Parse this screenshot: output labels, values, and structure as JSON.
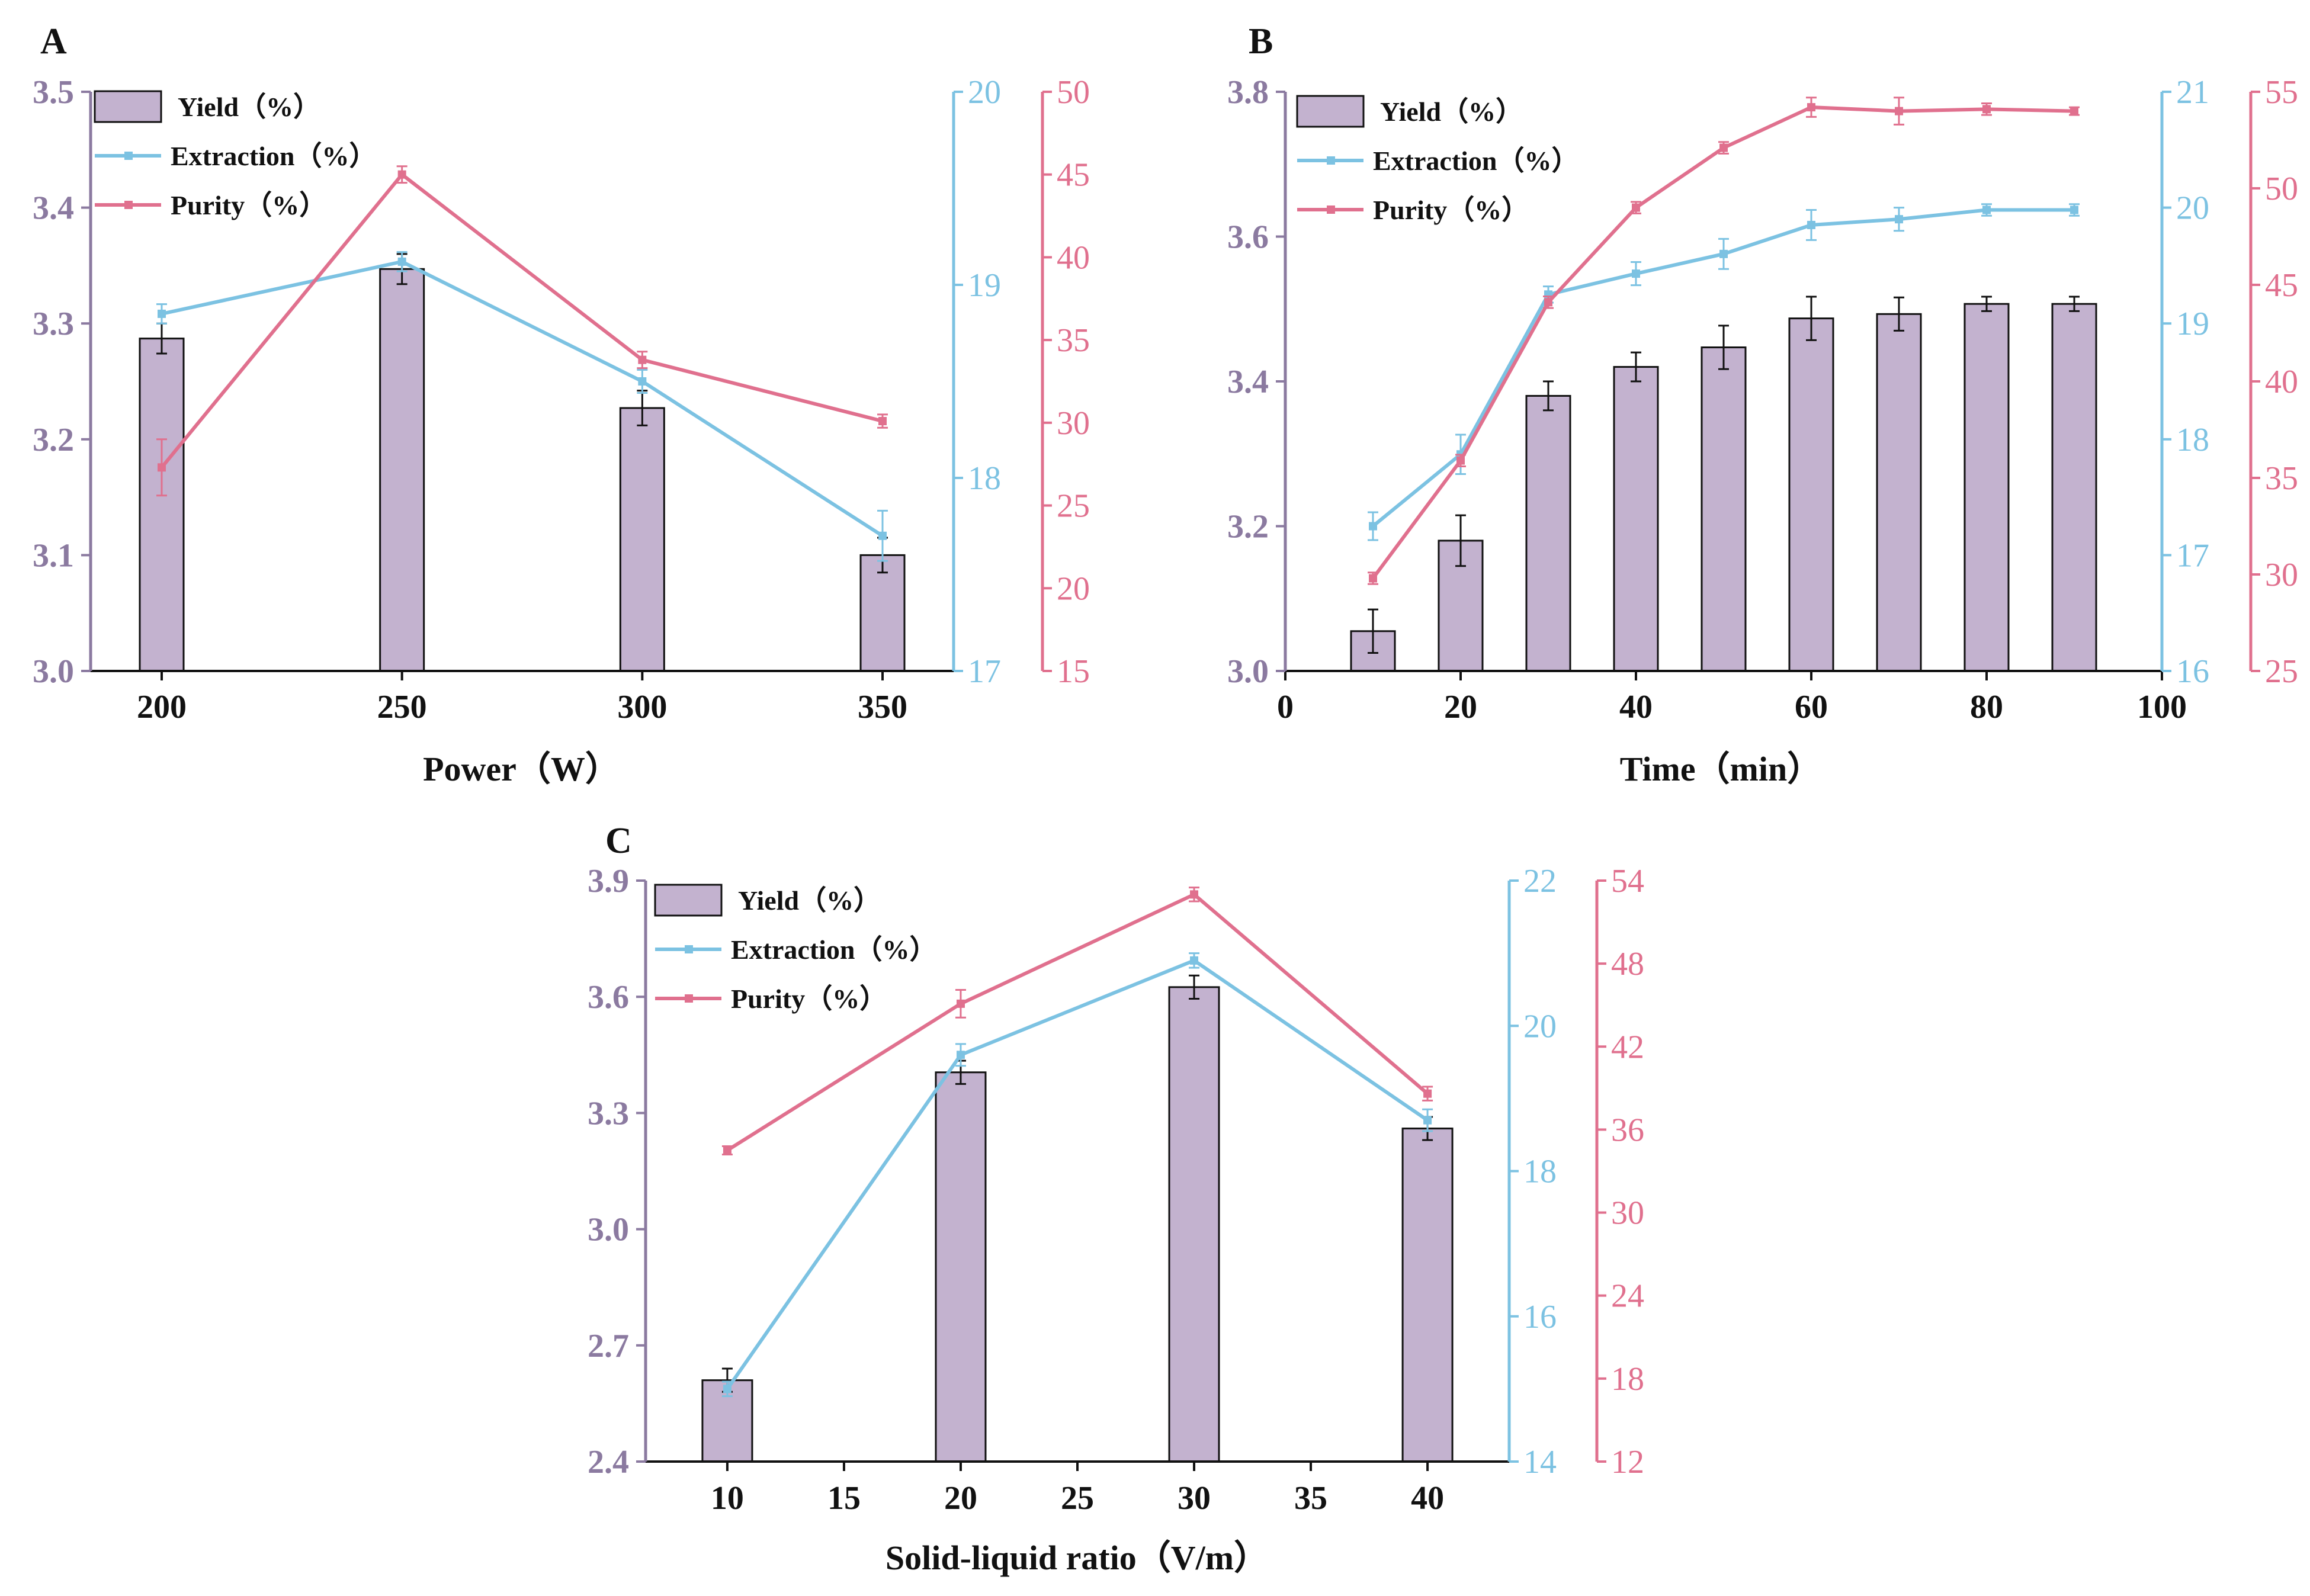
{
  "colors": {
    "yield": "#c3b2cf",
    "yield_axis": "#8b7aa0",
    "extraction": "#7cc2e2",
    "purity": "#e0708e",
    "ink": "#111111"
  },
  "chart_data": [
    {
      "panel": "A",
      "type": "bar+line",
      "xlabel": "Power（W）",
      "x_is_numeric": false,
      "categories": [
        "200",
        "250",
        "300",
        "350"
      ],
      "y_axes": {
        "yield": {
          "range": [
            3.0,
            3.5
          ],
          "ticks": [
            "3.0",
            "3.1",
            "3.2",
            "3.3",
            "3.4",
            "3.5"
          ]
        },
        "extraction": {
          "range": [
            17,
            20
          ],
          "ticks": [
            "17",
            "18",
            "19",
            "20"
          ]
        },
        "purity": {
          "range": [
            15,
            50
          ],
          "ticks": [
            "15",
            "20",
            "25",
            "30",
            "35",
            "40",
            "45",
            "50"
          ]
        }
      },
      "series": [
        {
          "name": "Yield（%）",
          "kind": "bar",
          "axis": "yield",
          "values": [
            3.287,
            3.347,
            3.227,
            3.1
          ],
          "errors": [
            0.013,
            0.013,
            0.015,
            0.015
          ]
        },
        {
          "name": "Extraction（%）",
          "kind": "line",
          "axis": "extraction",
          "values": [
            18.85,
            19.12,
            18.5,
            17.7
          ],
          "errors": [
            0.05,
            0.05,
            0.06,
            0.13
          ]
        },
        {
          "name": "Purity（%）",
          "kind": "line",
          "axis": "purity",
          "values": [
            27.3,
            45.0,
            33.8,
            30.1
          ],
          "errors": [
            1.7,
            0.5,
            0.5,
            0.4
          ]
        }
      ]
    },
    {
      "panel": "B",
      "type": "bar+line",
      "xlabel": "Time（min）",
      "x_is_numeric": true,
      "x": [
        10,
        20,
        30,
        40,
        50,
        60,
        70,
        80,
        90
      ],
      "xlim": [
        0,
        100
      ],
      "x_ticks": [
        "0",
        "20",
        "40",
        "60",
        "80",
        "100"
      ],
      "y_axes": {
        "yield": {
          "range": [
            3.0,
            3.8
          ],
          "ticks": [
            "3.0",
            "3.2",
            "3.4",
            "3.6",
            "3.8"
          ]
        },
        "extraction": {
          "range": [
            16,
            21
          ],
          "ticks": [
            "16",
            "17",
            "18",
            "19",
            "20",
            "21"
          ]
        },
        "purity": {
          "range": [
            25,
            55
          ],
          "ticks": [
            "25",
            "30",
            "35",
            "40",
            "45",
            "50",
            "55"
          ]
        }
      },
      "series": [
        {
          "name": "Yield（%）",
          "kind": "bar",
          "axis": "yield",
          "values": [
            3.055,
            3.18,
            3.38,
            3.42,
            3.447,
            3.487,
            3.493,
            3.507,
            3.507
          ],
          "errors": [
            0.03,
            0.035,
            0.02,
            0.02,
            0.03,
            0.03,
            0.023,
            0.01,
            0.01
          ]
        },
        {
          "name": "Extraction（%）",
          "kind": "line",
          "axis": "extraction",
          "values": [
            17.25,
            17.87,
            19.25,
            19.43,
            19.6,
            19.85,
            19.9,
            19.98,
            19.98
          ],
          "errors": [
            0.12,
            0.17,
            0.07,
            0.1,
            0.13,
            0.13,
            0.1,
            0.05,
            0.05
          ]
        },
        {
          "name": "Purity（%）",
          "kind": "line",
          "axis": "purity",
          "values": [
            29.8,
            35.9,
            44.1,
            49.0,
            52.1,
            54.2,
            54.0,
            54.1,
            54.0
          ],
          "errors": [
            0.3,
            0.3,
            0.3,
            0.3,
            0.3,
            0.5,
            0.7,
            0.3,
            0.2
          ]
        }
      ]
    },
    {
      "panel": "C",
      "type": "bar+line",
      "xlabel": "Solid-liquid ratio（V/m）",
      "x_is_numeric": true,
      "x": [
        10,
        20,
        30,
        40
      ],
      "xlim": [
        6.5,
        43.5
      ],
      "x_ticks": [
        "10",
        "15",
        "20",
        "25",
        "30",
        "35",
        "40"
      ],
      "y_axes": {
        "yield": {
          "range": [
            2.4,
            3.9
          ],
          "ticks": [
            "2.4",
            "2.7",
            "3.0",
            "3.3",
            "3.6",
            "3.9"
          ]
        },
        "extraction": {
          "range": [
            14,
            22
          ],
          "ticks": [
            "14",
            "16",
            "18",
            "20",
            "22"
          ]
        },
        "purity": {
          "range": [
            12,
            54
          ],
          "ticks": [
            "12",
            "18",
            "24",
            "30",
            "36",
            "42",
            "48",
            "54"
          ]
        }
      },
      "series": [
        {
          "name": "Yield（%）",
          "kind": "bar",
          "axis": "yield",
          "values": [
            2.61,
            3.405,
            3.625,
            3.26
          ],
          "errors": [
            0.03,
            0.03,
            0.03,
            0.03
          ]
        },
        {
          "name": "Extraction（%）",
          "kind": "line",
          "axis": "extraction",
          "values": [
            15.0,
            19.6,
            20.9,
            18.7
          ],
          "errors": [
            0.1,
            0.15,
            0.1,
            0.15
          ]
        },
        {
          "name": "Purity（%）",
          "kind": "line",
          "axis": "purity",
          "values": [
            34.5,
            45.1,
            53.0,
            38.6
          ],
          "errors": [
            0.3,
            1.0,
            0.5,
            0.5
          ]
        }
      ]
    }
  ]
}
